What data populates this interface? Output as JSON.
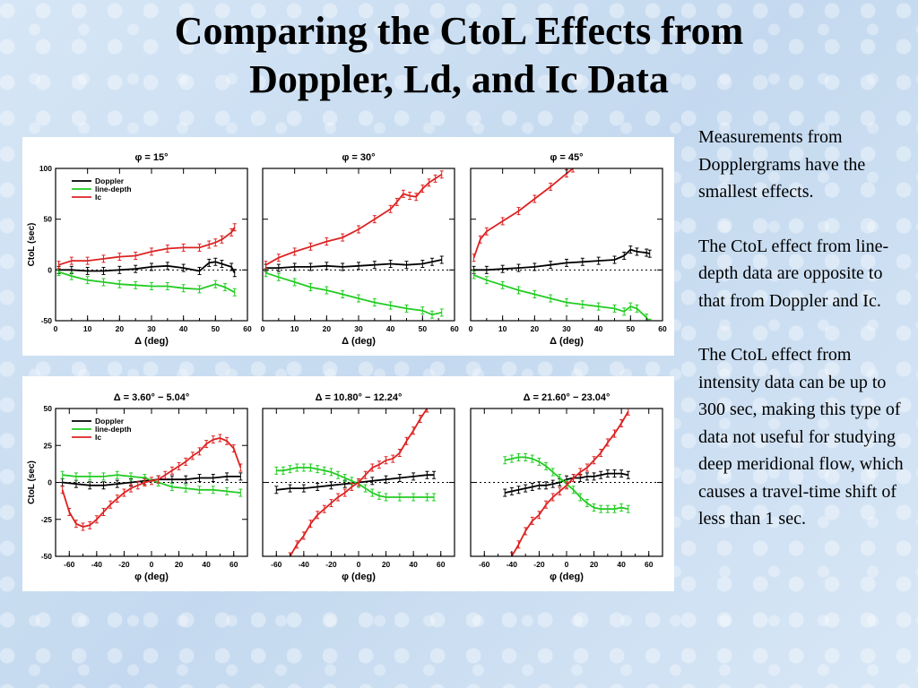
{
  "title": {
    "line1": "Comparing the CtoL Effects from",
    "line2": "Doppler, Ld, and Ic Data"
  },
  "side_text": [
    "Measurements from Dopplergrams have the smallest effects.",
    "The CtoL effect from line-depth data are opposite to that from Doppler and Ic.",
    "The CtoL effect from intensity data can be up to 300 sec, making this type of data not useful for studying deep meridional flow, which causes a travel-time shift of less than 1 sec."
  ],
  "colors": {
    "Doppler": "#000000",
    "line-depth": "#22cc22",
    "Ic": "#dd2222"
  },
  "chart_data": [
    {
      "type": "line",
      "title": "φ = 15°",
      "xlabel": "Δ (deg)",
      "ylabel": "CtoL (sec)",
      "xlim": [
        0,
        60
      ],
      "ylim": [
        -50,
        100
      ],
      "xticks": [
        0,
        10,
        20,
        30,
        40,
        50,
        60
      ],
      "yticks": [
        -50,
        0,
        50,
        100
      ],
      "legend": "top-left",
      "zero_line": true,
      "series": [
        {
          "name": "Doppler",
          "x": [
            1,
            5,
            10,
            15,
            20,
            25,
            30,
            35,
            40,
            45,
            48,
            50,
            52,
            55,
            56
          ],
          "y": [
            0,
            0,
            -1,
            -1,
            0,
            1,
            3,
            4,
            2,
            -1,
            7,
            8,
            6,
            3,
            -3
          ]
        },
        {
          "name": "line-depth",
          "x": [
            1,
            5,
            10,
            15,
            20,
            25,
            30,
            35,
            40,
            45,
            50,
            53,
            56
          ],
          "y": [
            -2,
            -6,
            -10,
            -12,
            -14,
            -15,
            -16,
            -16,
            -18,
            -19,
            -14,
            -17,
            -22
          ]
        },
        {
          "name": "Ic",
          "x": [
            1,
            5,
            10,
            15,
            20,
            25,
            30,
            35,
            40,
            45,
            48,
            50,
            52,
            55,
            56
          ],
          "y": [
            5,
            9,
            9,
            11,
            13,
            14,
            18,
            21,
            22,
            22,
            25,
            27,
            30,
            37,
            42
          ]
        }
      ]
    },
    {
      "type": "line",
      "title": "φ = 30°",
      "xlabel": "Δ (deg)",
      "xlim": [
        0,
        60
      ],
      "ylim": [
        -50,
        100
      ],
      "xticks": [
        0,
        10,
        20,
        30,
        40,
        50,
        60
      ],
      "zero_line": true,
      "series": [
        {
          "name": "Doppler",
          "x": [
            1,
            5,
            10,
            15,
            20,
            25,
            30,
            35,
            40,
            45,
            50,
            53,
            56
          ],
          "y": [
            2,
            2,
            3,
            3,
            4,
            3,
            4,
            5,
            6,
            5,
            6,
            8,
            10
          ]
        },
        {
          "name": "line-depth",
          "x": [
            1,
            5,
            10,
            15,
            20,
            25,
            30,
            35,
            40,
            45,
            50,
            53,
            56
          ],
          "y": [
            -3,
            -7,
            -12,
            -17,
            -20,
            -24,
            -28,
            -32,
            -35,
            -38,
            -40,
            -44,
            -42
          ]
        },
        {
          "name": "Ic",
          "x": [
            1,
            5,
            10,
            15,
            20,
            25,
            30,
            35,
            40,
            42,
            44,
            46,
            48,
            50,
            52,
            54,
            56
          ],
          "y": [
            5,
            12,
            18,
            23,
            28,
            32,
            40,
            50,
            60,
            67,
            75,
            73,
            72,
            80,
            86,
            90,
            94
          ]
        }
      ]
    },
    {
      "type": "line",
      "title": "φ = 45°",
      "xlabel": "Δ (deg)",
      "xlim": [
        0,
        60
      ],
      "ylim": [
        -50,
        100
      ],
      "xticks": [
        0,
        10,
        20,
        30,
        40,
        50,
        60
      ],
      "zero_line": true,
      "series": [
        {
          "name": "Doppler",
          "x": [
            1,
            5,
            10,
            15,
            20,
            25,
            30,
            35,
            40,
            45,
            48,
            50,
            52,
            55,
            56
          ],
          "y": [
            0,
            0,
            1,
            2,
            3,
            5,
            7,
            8,
            9,
            10,
            14,
            20,
            18,
            17,
            16
          ]
        },
        {
          "name": "line-depth",
          "x": [
            1,
            5,
            10,
            15,
            20,
            25,
            30,
            35,
            40,
            45,
            48,
            50,
            52,
            55,
            56
          ],
          "y": [
            -5,
            -10,
            -15,
            -20,
            -24,
            -28,
            -32,
            -34,
            -36,
            -38,
            -41,
            -36,
            -38,
            -47,
            -52
          ]
        },
        {
          "name": "Ic",
          "x": [
            1,
            3,
            5,
            10,
            15,
            20,
            25,
            30,
            32
          ],
          "y": [
            12,
            30,
            38,
            48,
            58,
            70,
            82,
            95,
            100
          ]
        }
      ]
    },
    {
      "type": "line",
      "title": "Δ = 3.60° − 5.04°",
      "xlabel": "φ (deg)",
      "ylabel": "CtoL (sec)",
      "xlim": [
        -70,
        70
      ],
      "ylim": [
        -50,
        50
      ],
      "xticks": [
        -60,
        -40,
        -20,
        0,
        20,
        40,
        60
      ],
      "yticks": [
        -50,
        -25,
        0,
        25,
        50
      ],
      "legend": "top-left",
      "zero_line": true,
      "series": [
        {
          "name": "Doppler",
          "x": [
            -65,
            -55,
            -45,
            -35,
            -25,
            -15,
            -5,
            5,
            15,
            25,
            35,
            45,
            55,
            65
          ],
          "y": [
            0,
            -1,
            -2,
            -2,
            -1,
            0,
            1,
            2,
            2,
            2,
            3,
            3,
            4,
            4
          ]
        },
        {
          "name": "line-depth",
          "x": [
            -65,
            -55,
            -45,
            -35,
            -25,
            -15,
            -5,
            5,
            15,
            25,
            35,
            45,
            55,
            65
          ],
          "y": [
            5,
            4,
            4,
            4,
            5,
            4,
            3,
            0,
            -3,
            -4,
            -5,
            -5,
            -6,
            -7
          ]
        },
        {
          "name": "Ic",
          "x": [
            -65,
            -60,
            -55,
            -50,
            -45,
            -40,
            -35,
            -30,
            -25,
            -20,
            -15,
            -10,
            -5,
            0,
            5,
            10,
            15,
            20,
            25,
            30,
            35,
            40,
            45,
            50,
            55,
            60,
            65
          ],
          "y": [
            -5,
            -20,
            -28,
            -30,
            -29,
            -25,
            -20,
            -15,
            -11,
            -7,
            -4,
            -2,
            0,
            1,
            2,
            5,
            8,
            11,
            14,
            18,
            21,
            26,
            29,
            30,
            28,
            23,
            10
          ]
        }
      ]
    },
    {
      "type": "line",
      "title": "Δ = 10.80° − 12.24°",
      "xlabel": "φ (deg)",
      "xlim": [
        -70,
        70
      ],
      "ylim": [
        -50,
        50
      ],
      "xticks": [
        -60,
        -40,
        -20,
        0,
        20,
        40,
        60
      ],
      "zero_line": true,
      "series": [
        {
          "name": "Doppler",
          "x": [
            -60,
            -50,
            -40,
            -30,
            -20,
            -10,
            0,
            10,
            20,
            30,
            40,
            50,
            55
          ],
          "y": [
            -5,
            -4,
            -4,
            -3,
            -2,
            -1,
            0,
            1,
            2,
            3,
            4,
            5,
            5
          ]
        },
        {
          "name": "line-depth",
          "x": [
            -60,
            -55,
            -50,
            -45,
            -40,
            -35,
            -30,
            -25,
            -20,
            -15,
            -10,
            -5,
            0,
            5,
            10,
            15,
            20,
            30,
            40,
            50,
            55
          ],
          "y": [
            8,
            8,
            9,
            10,
            10,
            10,
            9,
            8,
            7,
            5,
            3,
            1,
            -1,
            -4,
            -7,
            -9,
            -10,
            -10,
            -10,
            -10,
            -10
          ]
        },
        {
          "name": "Ic",
          "x": [
            -50,
            -45,
            -40,
            -35,
            -30,
            -25,
            -20,
            -15,
            -10,
            -5,
            0,
            5,
            10,
            15,
            20,
            25,
            30,
            35,
            40,
            45,
            50
          ],
          "y": [
            -50,
            -42,
            -36,
            -28,
            -22,
            -18,
            -14,
            -10,
            -7,
            -3,
            0,
            5,
            10,
            12,
            15,
            16,
            20,
            28,
            35,
            43,
            50
          ]
        }
      ]
    },
    {
      "type": "line",
      "title": "Δ = 21.60° − 23.04°",
      "xlabel": "φ (deg)",
      "xlim": [
        -70,
        70
      ],
      "ylim": [
        -50,
        50
      ],
      "xticks": [
        -60,
        -40,
        -20,
        0,
        20,
        40,
        60
      ],
      "zero_line": true,
      "series": [
        {
          "name": "Doppler",
          "x": [
            -45,
            -40,
            -35,
            -30,
            -25,
            -20,
            -15,
            -10,
            -5,
            0,
            5,
            10,
            15,
            20,
            25,
            30,
            35,
            40,
            45
          ],
          "y": [
            -7,
            -6,
            -5,
            -4,
            -3,
            -2,
            -2,
            -1,
            0,
            2,
            3,
            3,
            4,
            4,
            5,
            6,
            6,
            6,
            5
          ]
        },
        {
          "name": "line-depth",
          "x": [
            -45,
            -40,
            -35,
            -30,
            -25,
            -20,
            -15,
            -10,
            -5,
            0,
            5,
            10,
            15,
            20,
            25,
            30,
            35,
            40,
            45
          ],
          "y": [
            15,
            16,
            17,
            17,
            16,
            14,
            11,
            7,
            3,
            -1,
            -5,
            -10,
            -14,
            -17,
            -18,
            -18,
            -18,
            -17,
            -18
          ]
        },
        {
          "name": "Ic",
          "x": [
            -40,
            -35,
            -30,
            -25,
            -20,
            -15,
            -10,
            -5,
            0,
            5,
            10,
            15,
            20,
            25,
            30,
            35,
            40,
            45
          ],
          "y": [
            -50,
            -42,
            -33,
            -26,
            -22,
            -15,
            -10,
            -6,
            -2,
            3,
            7,
            10,
            15,
            20,
            27,
            33,
            40,
            48
          ]
        }
      ]
    }
  ]
}
